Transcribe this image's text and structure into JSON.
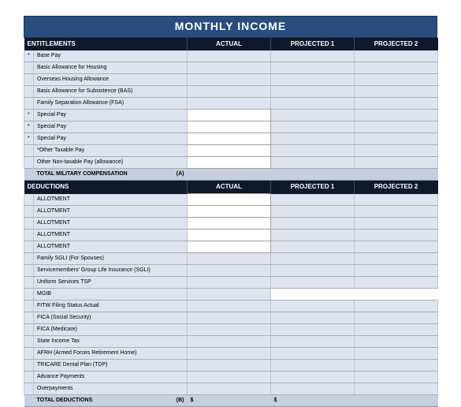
{
  "title": "MONTHLY INCOME",
  "columns": {
    "actual": "ACTUAL",
    "proj1": "PROJECTED 1",
    "proj2": "PROJECTED 2"
  },
  "entitlements_header": "ENTITLEMENTS",
  "entitlements_rows": [
    {
      "mark": "*",
      "label": "Base Pay",
      "cells": [
        "light",
        "light",
        "light"
      ]
    },
    {
      "mark": "",
      "label": "Basic Allowance for Housing",
      "cells": [
        "light",
        "light",
        "light"
      ]
    },
    {
      "mark": "",
      "label": "Overseas Housing Allowance",
      "cells": [
        "light",
        "light",
        "light"
      ]
    },
    {
      "mark": "",
      "label": "Basic Allowance for Subsistence (BAS)",
      "cells": [
        "light",
        "light",
        "light"
      ]
    },
    {
      "mark": "",
      "label": "Family Separation Allowance (FSA)",
      "cells": [
        "light",
        "light",
        "light"
      ]
    },
    {
      "mark": "*",
      "label": "Special Pay",
      "cells": [
        "input",
        "light",
        "light"
      ]
    },
    {
      "mark": "*",
      "label": "Special Pay",
      "cells": [
        "input",
        "light",
        "light"
      ]
    },
    {
      "mark": "*",
      "label": "Special Pay",
      "cells": [
        "input",
        "light",
        "light"
      ]
    },
    {
      "mark": "",
      "label": "*Other Taxable Pay",
      "cells": [
        "input",
        "light",
        "light"
      ]
    },
    {
      "mark": "",
      "label": "Other Non-taxable Pay (allowance)",
      "cells": [
        "input",
        "light",
        "light"
      ]
    }
  ],
  "entitlements_total": {
    "label": "TOTAL MILITARY COMPENSATION",
    "suffix": "(A)"
  },
  "deductions_header": "DEDUCTIONS",
  "deductions_rows": [
    {
      "mark": "",
      "label": "ALLOTMENT",
      "cells": [
        "input",
        "light",
        "light"
      ]
    },
    {
      "mark": "",
      "label": "ALLOTMENT",
      "cells": [
        "input",
        "light",
        "light"
      ]
    },
    {
      "mark": "",
      "label": "ALLOTMENT",
      "cells": [
        "input",
        "light",
        "light"
      ]
    },
    {
      "mark": "",
      "label": "ALLOTMENT",
      "cells": [
        "input",
        "light",
        "light"
      ]
    },
    {
      "mark": "",
      "label": "ALLOTMENT",
      "cells": [
        "input",
        "light",
        "light"
      ]
    },
    {
      "mark": "",
      "label": "Family SGLI (For Spouses)",
      "cells": [
        "light",
        "light",
        "light"
      ]
    },
    {
      "mark": "",
      "label": "Servicemembers' Group Life Insurance (SGLI)",
      "cells": [
        "light",
        "light",
        "light"
      ]
    },
    {
      "mark": "",
      "label": "Uniform Services TSP",
      "cells": [
        "light",
        "light",
        "light"
      ]
    },
    {
      "mark": "",
      "label": "MGIB",
      "cells": [
        "light",
        "blank",
        "blank"
      ]
    },
    {
      "mark": "",
      "label": "FITW Filing Status Actual",
      "cells": [
        "light",
        "light",
        "light"
      ]
    },
    {
      "mark": "",
      "label": "FICA (Social Security)",
      "cells": [
        "light",
        "light",
        "light"
      ]
    },
    {
      "mark": "",
      "label": "FICA (Medicare)",
      "cells": [
        "light",
        "light",
        "light"
      ]
    },
    {
      "mark": "",
      "label": "State Income Tax",
      "cells": [
        "light",
        "light",
        "light"
      ]
    },
    {
      "mark": "",
      "label": "AFRH (Armed Forces Retirement Home)",
      "cells": [
        "light",
        "light",
        "light"
      ]
    },
    {
      "mark": "",
      "label": "TRICARE Dental Plan (TDP)",
      "cells": [
        "light",
        "light",
        "light"
      ]
    },
    {
      "mark": "",
      "label": "Advance Payments",
      "cells": [
        "light",
        "light",
        "light"
      ]
    },
    {
      "mark": "",
      "label": "Overpayments",
      "cells": [
        "light",
        "light",
        "light"
      ]
    }
  ],
  "deductions_total": {
    "label": "TOTAL DEDUCTIONS",
    "suffix": "(B)",
    "actual": "$",
    "proj1": "$",
    "proj2": ""
  },
  "colors": {
    "title_bg": "#2a4d7f",
    "header_bg": "#0d1a2b",
    "cell_light": "#dde3ef",
    "total_bg": "#c7cee0"
  }
}
